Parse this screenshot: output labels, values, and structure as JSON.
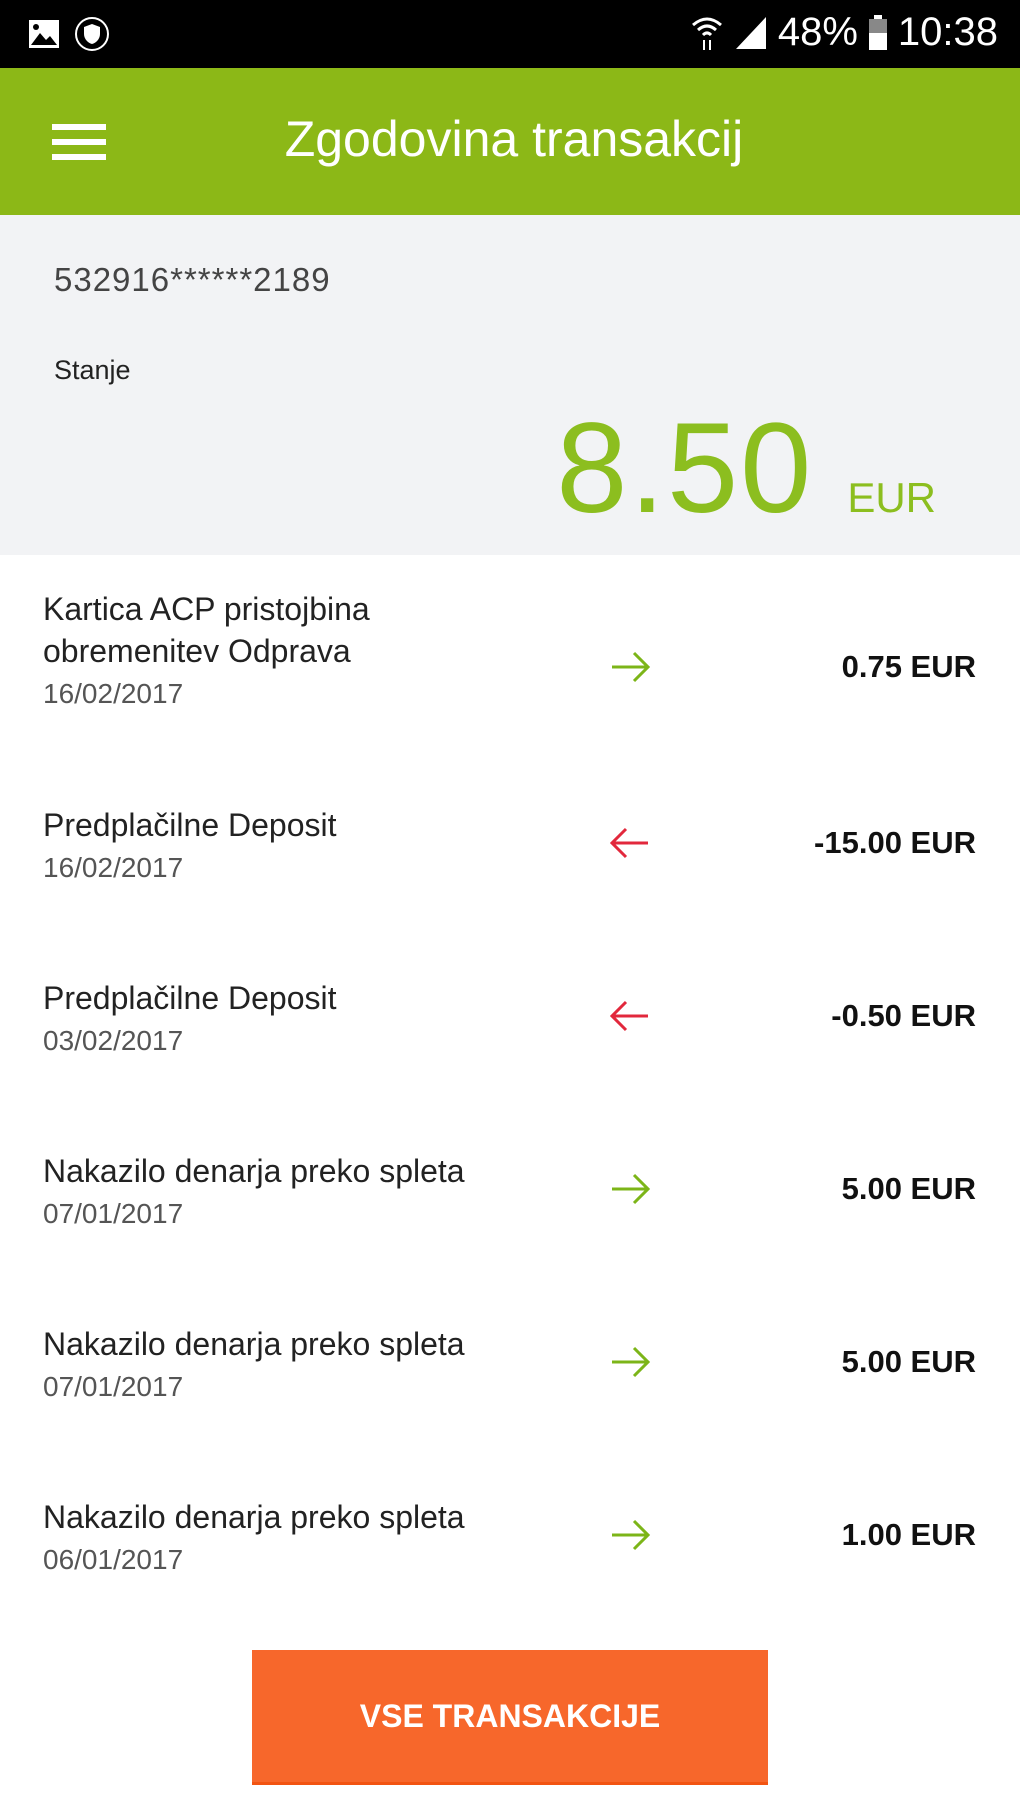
{
  "status_bar": {
    "battery": "48%",
    "time": "10:38",
    "icons": [
      "image-icon",
      "shield-icon",
      "wifi-icon",
      "signal-icon",
      "battery-icon"
    ]
  },
  "header": {
    "title": "Zgodovina transakcij",
    "menu_icon": "hamburger-icon"
  },
  "account": {
    "card_number": "532916******2189",
    "balance_label": "Stanje",
    "balance": "8.50",
    "currency": "EUR"
  },
  "colors": {
    "brand": "#8cb817",
    "incoming": "#7cb518",
    "outgoing": "#e2283c",
    "button": "#f7672b"
  },
  "transactions": [
    {
      "title": "Kartica ACP pristojbina obremenitev Odprava",
      "date": "16/02/2017",
      "direction": "in",
      "amount": "0.75 EUR"
    },
    {
      "title": "Predplačilne Deposit",
      "date": "16/02/2017",
      "direction": "out",
      "amount": "-15.00 EUR"
    },
    {
      "title": "Predplačilne Deposit",
      "date": "03/02/2017",
      "direction": "out",
      "amount": "-0.50 EUR"
    },
    {
      "title": "Nakazilo denarja preko spleta",
      "date": "07/01/2017",
      "direction": "in",
      "amount": "5.00 EUR"
    },
    {
      "title": "Nakazilo denarja preko spleta",
      "date": "07/01/2017",
      "direction": "in",
      "amount": "5.00 EUR"
    },
    {
      "title": "Nakazilo denarja preko spleta",
      "date": "06/01/2017",
      "direction": "in",
      "amount": "1.00 EUR"
    }
  ],
  "all_button": "VSE TRANSAKCIJE"
}
